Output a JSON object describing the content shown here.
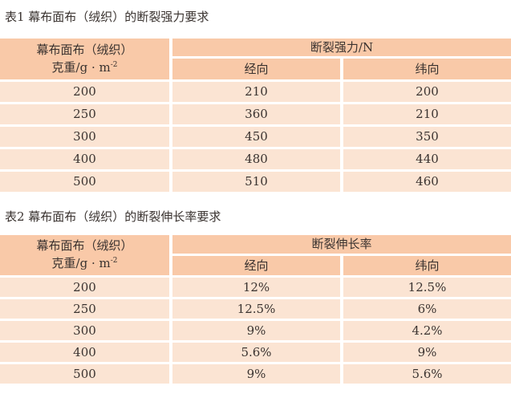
{
  "table1": {
    "title": "表1  幕布面布（绒织）的断裂强力要求",
    "header": {
      "col1_line1": "幕布面布（绒织）",
      "col1_line2": "克重/g · m",
      "col1_sup": "-2",
      "group": "断裂强力/N",
      "warp": "经向",
      "weft": "纬向"
    },
    "rows": [
      [
        "200",
        "210",
        "200"
      ],
      [
        "250",
        "360",
        "210"
      ],
      [
        "300",
        "450",
        "350"
      ],
      [
        "400",
        "480",
        "440"
      ],
      [
        "500",
        "510",
        "460"
      ]
    ]
  },
  "table2": {
    "title": "表2  幕布面布（绒织）的断裂伸长率要求",
    "header": {
      "col1_line1": "幕布面布（绒织）",
      "col1_line2": "克重/g · m",
      "col1_sup": "-2",
      "group": "断裂伸长率",
      "warp": "经向",
      "weft": "纬向"
    },
    "rows": [
      [
        "200",
        "12%",
        "12.5%"
      ],
      [
        "250",
        "12.5%",
        "6%"
      ],
      [
        "300",
        "9%",
        "4.2%"
      ],
      [
        "400",
        "5.6%",
        "9%"
      ],
      [
        "500",
        "9%",
        "5.6%"
      ]
    ]
  },
  "colors": {
    "header": "#f9c9a8",
    "row": "#fbe4d3"
  }
}
